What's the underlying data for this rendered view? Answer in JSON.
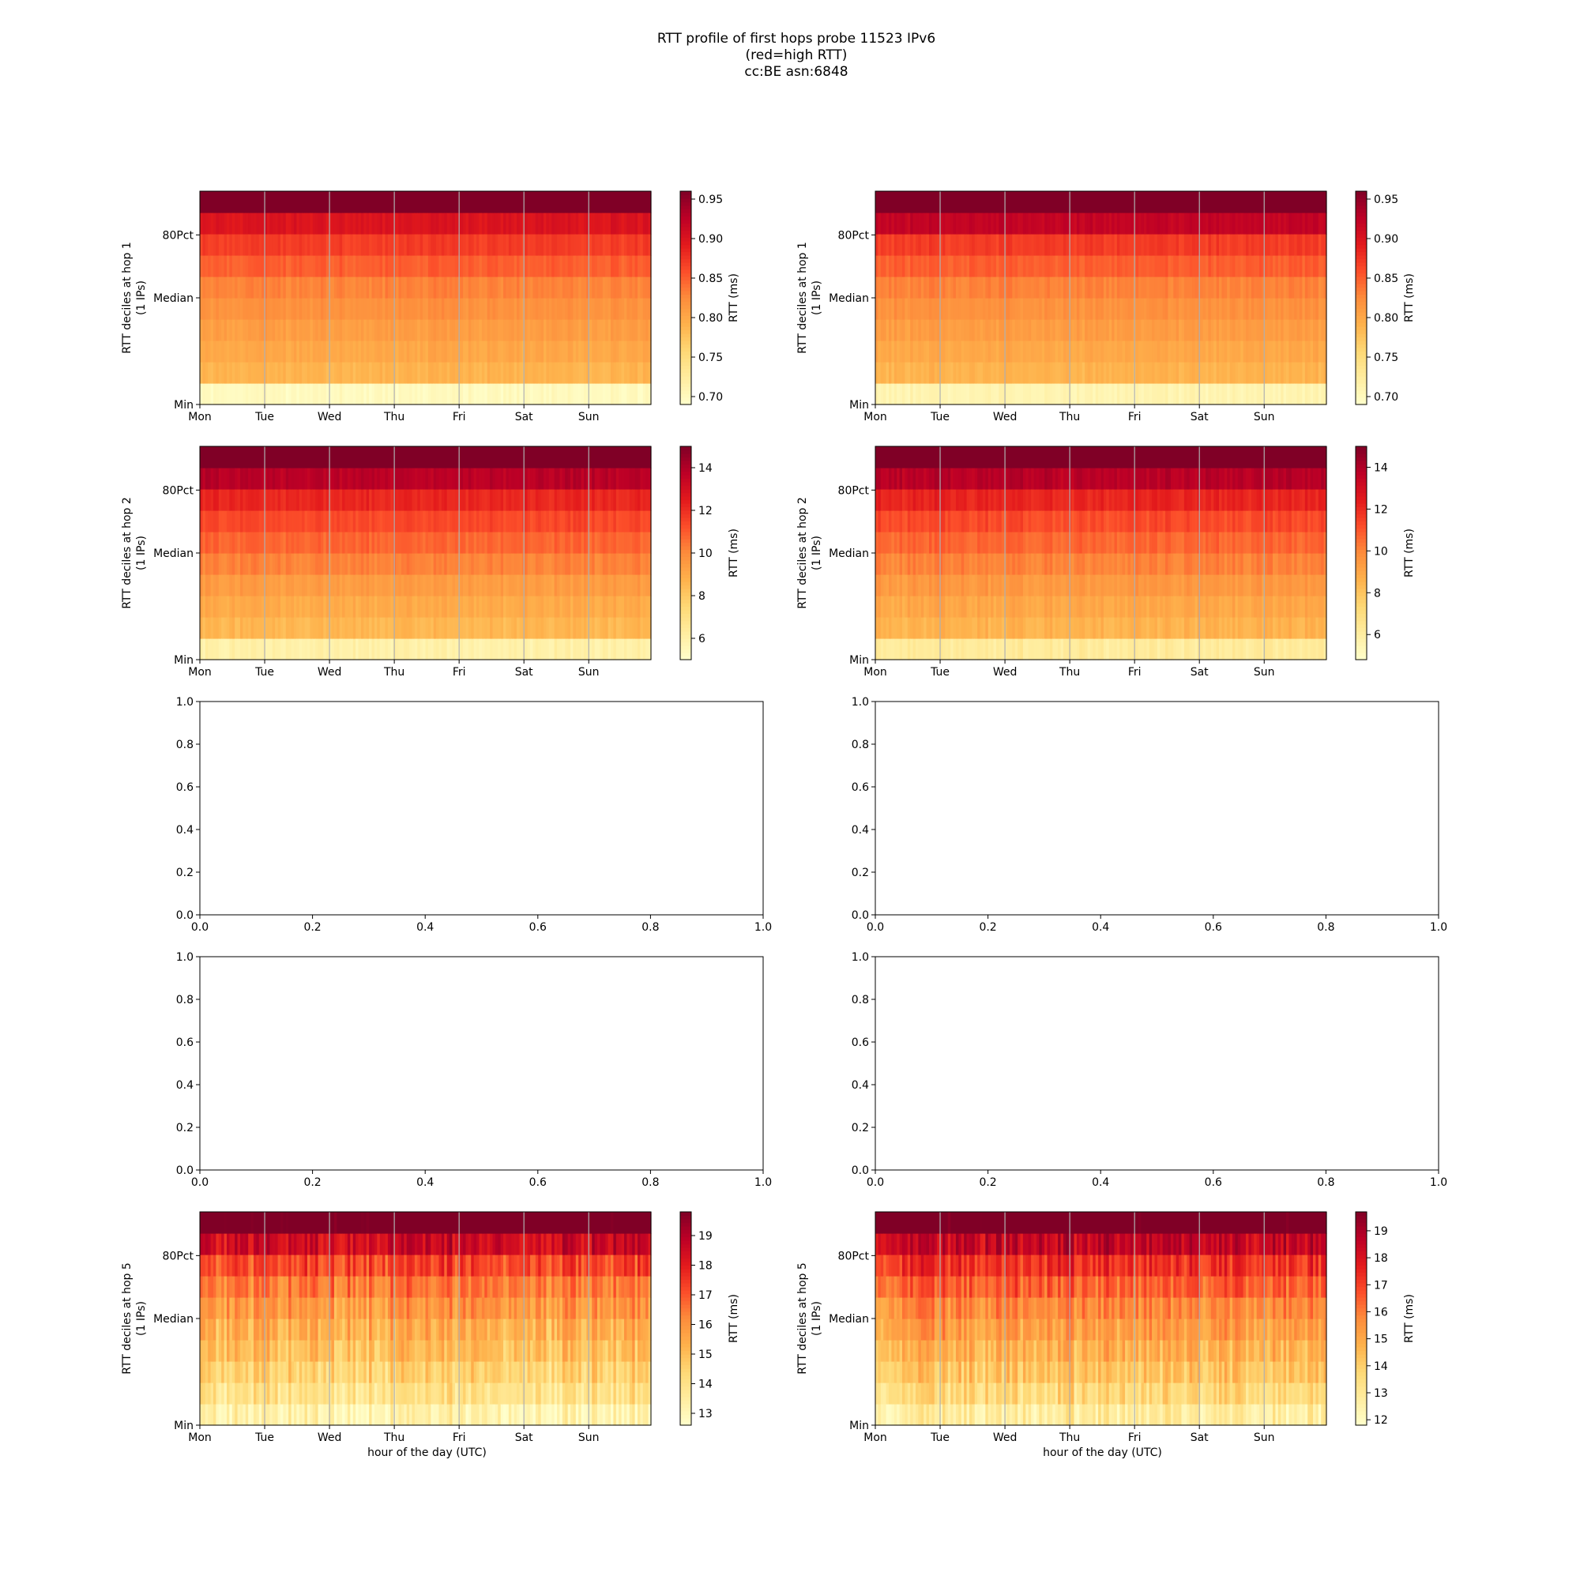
{
  "figure": {
    "title_lines": [
      "RTT profile of first hops probe 11523 IPv6",
      "(red=high RTT)",
      "cc:BE asn:6848"
    ]
  },
  "chart_data": [
    {
      "type": "heatmap",
      "hop": 1,
      "column": "left",
      "ylabel_lines": [
        "RTT deciles at hop 1",
        "(1 IPs)"
      ],
      "x_ticks": [
        "Mon",
        "Tue",
        "Wed",
        "Thu",
        "Fri",
        "Sat",
        "Sun"
      ],
      "y_ticks": [
        "Min",
        "Median",
        "80Pct"
      ],
      "colorbar": {
        "label": "RTT (ms)",
        "range": [
          0.69,
          0.96
        ],
        "ticks": [
          "0.70",
          "0.75",
          "0.80",
          "0.85",
          "0.90",
          "0.95"
        ],
        "tick_values": [
          0.7,
          0.75,
          0.8,
          0.85,
          0.9,
          0.95
        ]
      },
      "decile_levels": [
        0.7,
        0.79,
        0.8,
        0.81,
        0.82,
        0.83,
        0.85,
        0.87,
        0.9,
        0.97
      ],
      "variability": 0.012,
      "colormap": "YlOrRd"
    },
    {
      "type": "heatmap",
      "hop": 1,
      "column": "right",
      "ylabel_lines": [
        "RTT deciles at hop 1",
        "(1 IPs)"
      ],
      "x_ticks": [
        "Mon",
        "Tue",
        "Wed",
        "Thu",
        "Fri",
        "Sat",
        "Sun"
      ],
      "y_ticks": [
        "Min",
        "Median",
        "80Pct"
      ],
      "colorbar": {
        "label": "RTT (ms)",
        "range": [
          0.69,
          0.96
        ],
        "ticks": [
          "0.70",
          "0.75",
          "0.80",
          "0.85",
          "0.90",
          "0.95"
        ],
        "tick_values": [
          0.7,
          0.75,
          0.8,
          0.85,
          0.9,
          0.95
        ]
      },
      "decile_levels": [
        0.71,
        0.79,
        0.8,
        0.81,
        0.82,
        0.83,
        0.85,
        0.87,
        0.92,
        0.98
      ],
      "variability": 0.012,
      "colormap": "YlOrRd"
    },
    {
      "type": "heatmap",
      "hop": 2,
      "column": "left",
      "ylabel_lines": [
        "RTT deciles at hop 2",
        "(1 IPs)"
      ],
      "x_ticks": [
        "Mon",
        "Tue",
        "Wed",
        "Thu",
        "Fri",
        "Sat",
        "Sun"
      ],
      "y_ticks": [
        "Min",
        "Median",
        "80Pct"
      ],
      "colorbar": {
        "label": "RTT (ms)",
        "range": [
          5,
          15
        ],
        "ticks": [
          "6",
          "8",
          "10",
          "12",
          "14"
        ],
        "tick_values": [
          6,
          8,
          10,
          12,
          14
        ]
      },
      "decile_levels": [
        6.0,
        8.6,
        9.0,
        9.5,
        10.2,
        10.8,
        11.4,
        12.2,
        13.8,
        16.0
      ],
      "variability": 0.5,
      "colormap": "YlOrRd"
    },
    {
      "type": "heatmap",
      "hop": 2,
      "column": "right",
      "ylabel_lines": [
        "RTT deciles at hop 2",
        "(1 IPs)"
      ],
      "x_ticks": [
        "Mon",
        "Tue",
        "Wed",
        "Thu",
        "Fri",
        "Sat",
        "Sun"
      ],
      "y_ticks": [
        "Min",
        "Median",
        "80Pct"
      ],
      "colorbar": {
        "label": "RTT (ms)",
        "range": [
          4.8,
          15
        ],
        "ticks": [
          "6",
          "8",
          "10",
          "12",
          "14"
        ],
        "tick_values": [
          6,
          8,
          10,
          12,
          14
        ]
      },
      "decile_levels": [
        6.2,
        8.6,
        9.0,
        9.5,
        10.1,
        10.7,
        11.3,
        12.2,
        13.8,
        16.0
      ],
      "variability": 0.6,
      "colormap": "YlOrRd"
    },
    {
      "type": "empty_axes",
      "column": "left",
      "x_ticks": [
        "0.0",
        "0.2",
        "0.4",
        "0.6",
        "0.8",
        "1.0"
      ],
      "y_ticks": [
        "0.0",
        "0.2",
        "0.4",
        "0.6",
        "0.8",
        "1.0"
      ]
    },
    {
      "type": "empty_axes",
      "column": "right",
      "x_ticks": [
        "0.0",
        "0.2",
        "0.4",
        "0.6",
        "0.8",
        "1.0"
      ],
      "y_ticks": [
        "0.0",
        "0.2",
        "0.4",
        "0.6",
        "0.8",
        "1.0"
      ]
    },
    {
      "type": "empty_axes",
      "column": "left",
      "x_ticks": [
        "0.0",
        "0.2",
        "0.4",
        "0.6",
        "0.8",
        "1.0"
      ],
      "y_ticks": [
        "0.0",
        "0.2",
        "0.4",
        "0.6",
        "0.8",
        "1.0"
      ]
    },
    {
      "type": "empty_axes",
      "column": "right",
      "x_ticks": [
        "0.0",
        "0.2",
        "0.4",
        "0.6",
        "0.8",
        "1.0"
      ],
      "y_ticks": [
        "0.0",
        "0.2",
        "0.4",
        "0.6",
        "0.8",
        "1.0"
      ]
    },
    {
      "type": "heatmap",
      "hop": 5,
      "column": "left",
      "ylabel_lines": [
        "RTT deciles at hop 5",
        "(1 IPs)"
      ],
      "xlabel": "hour of the day (UTC)",
      "x_ticks": [
        "Mon",
        "Tue",
        "Wed",
        "Thu",
        "Fri",
        "Sat",
        "Sun"
      ],
      "y_ticks": [
        "Min",
        "Median",
        "80Pct"
      ],
      "colorbar": {
        "label": "RTT (ms)",
        "range": [
          12.6,
          19.8
        ],
        "ticks": [
          "13",
          "14",
          "15",
          "16",
          "17",
          "18",
          "19"
        ],
        "tick_values": [
          13,
          14,
          15,
          16,
          17,
          18,
          19
        ]
      },
      "decile_levels": [
        13.2,
        14.0,
        14.5,
        15.0,
        15.4,
        15.9,
        16.5,
        17.3,
        18.5,
        20.5
      ],
      "variability": 1.3,
      "colormap": "YlOrRd"
    },
    {
      "type": "heatmap",
      "hop": 5,
      "column": "right",
      "ylabel_lines": [
        "RTT deciles at hop 5",
        "(1 IPs)"
      ],
      "xlabel": "hour of the day (UTC)",
      "x_ticks": [
        "Mon",
        "Tue",
        "Wed",
        "Thu",
        "Fri",
        "Sat",
        "Sun"
      ],
      "y_ticks": [
        "Min",
        "Median",
        "80Pct"
      ],
      "colorbar": {
        "label": "RTT (ms)",
        "range": [
          11.8,
          19.7
        ],
        "ticks": [
          "12",
          "13",
          "14",
          "15",
          "16",
          "17",
          "18",
          "19"
        ],
        "tick_values": [
          12,
          13,
          14,
          15,
          16,
          17,
          18,
          19
        ]
      },
      "decile_levels": [
        12.8,
        13.7,
        14.3,
        14.8,
        15.3,
        15.8,
        16.5,
        17.3,
        18.5,
        20.5
      ],
      "variability": 1.4,
      "colormap": "YlOrRd"
    }
  ]
}
